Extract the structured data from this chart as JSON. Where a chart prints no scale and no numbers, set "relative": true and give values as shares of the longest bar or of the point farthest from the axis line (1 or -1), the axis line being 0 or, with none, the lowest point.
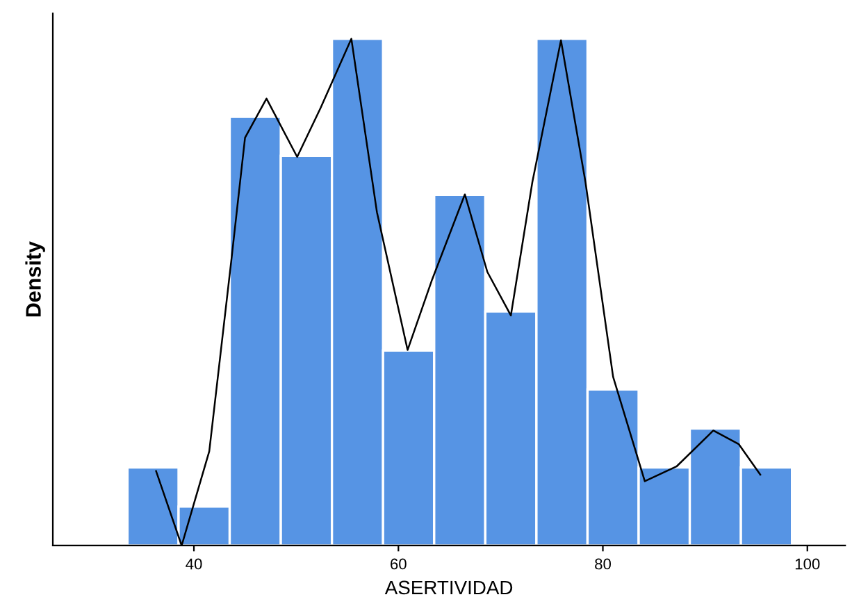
{
  "chart_data": {
    "type": "histogram",
    "xlabel": "ASERTIVIDAD",
    "ylabel": "Density",
    "relative": true,
    "bins": [
      33.5,
      38.5,
      43.5,
      48.5,
      53.5,
      58.5,
      63.5,
      68.5,
      73.5,
      78.5,
      83.5,
      88.5,
      93.5,
      98.5
    ],
    "values": [
      0.154,
      0.077,
      0.846,
      0.769,
      1,
      0.385,
      0.692,
      0.462,
      1,
      0.308,
      0.154,
      0.231,
      0.154
    ],
    "color": "#5694e4",
    "series": [
      {
        "type": "line",
        "color": "#000000",
        "x": [
          36.3,
          38.8,
          41.5,
          43.7,
          45.0,
          47.1,
          50.1,
          52.4,
          55.4,
          57.9,
          60.9,
          63.3,
          66.5,
          68.7,
          71.0,
          73.1,
          75.9,
          78.3,
          81.0,
          84.1,
          87.2,
          90.8,
          93.3,
          95.4
        ],
        "values": [
          0.147,
          0.0,
          0.186,
          0.57,
          0.805,
          0.882,
          0.767,
          0.864,
          1.0,
          0.658,
          0.386,
          0.525,
          0.693,
          0.54,
          0.454,
          0.717,
          0.997,
          0.717,
          0.333,
          0.127,
          0.156,
          0.227,
          0.2,
          0.14
        ]
      }
    ],
    "xlim": [
      26.2,
      103.7
    ],
    "xticks": [
      40,
      60,
      80,
      100
    ],
    "tick_labels": "x",
    "grid": false,
    "legend": false
  }
}
